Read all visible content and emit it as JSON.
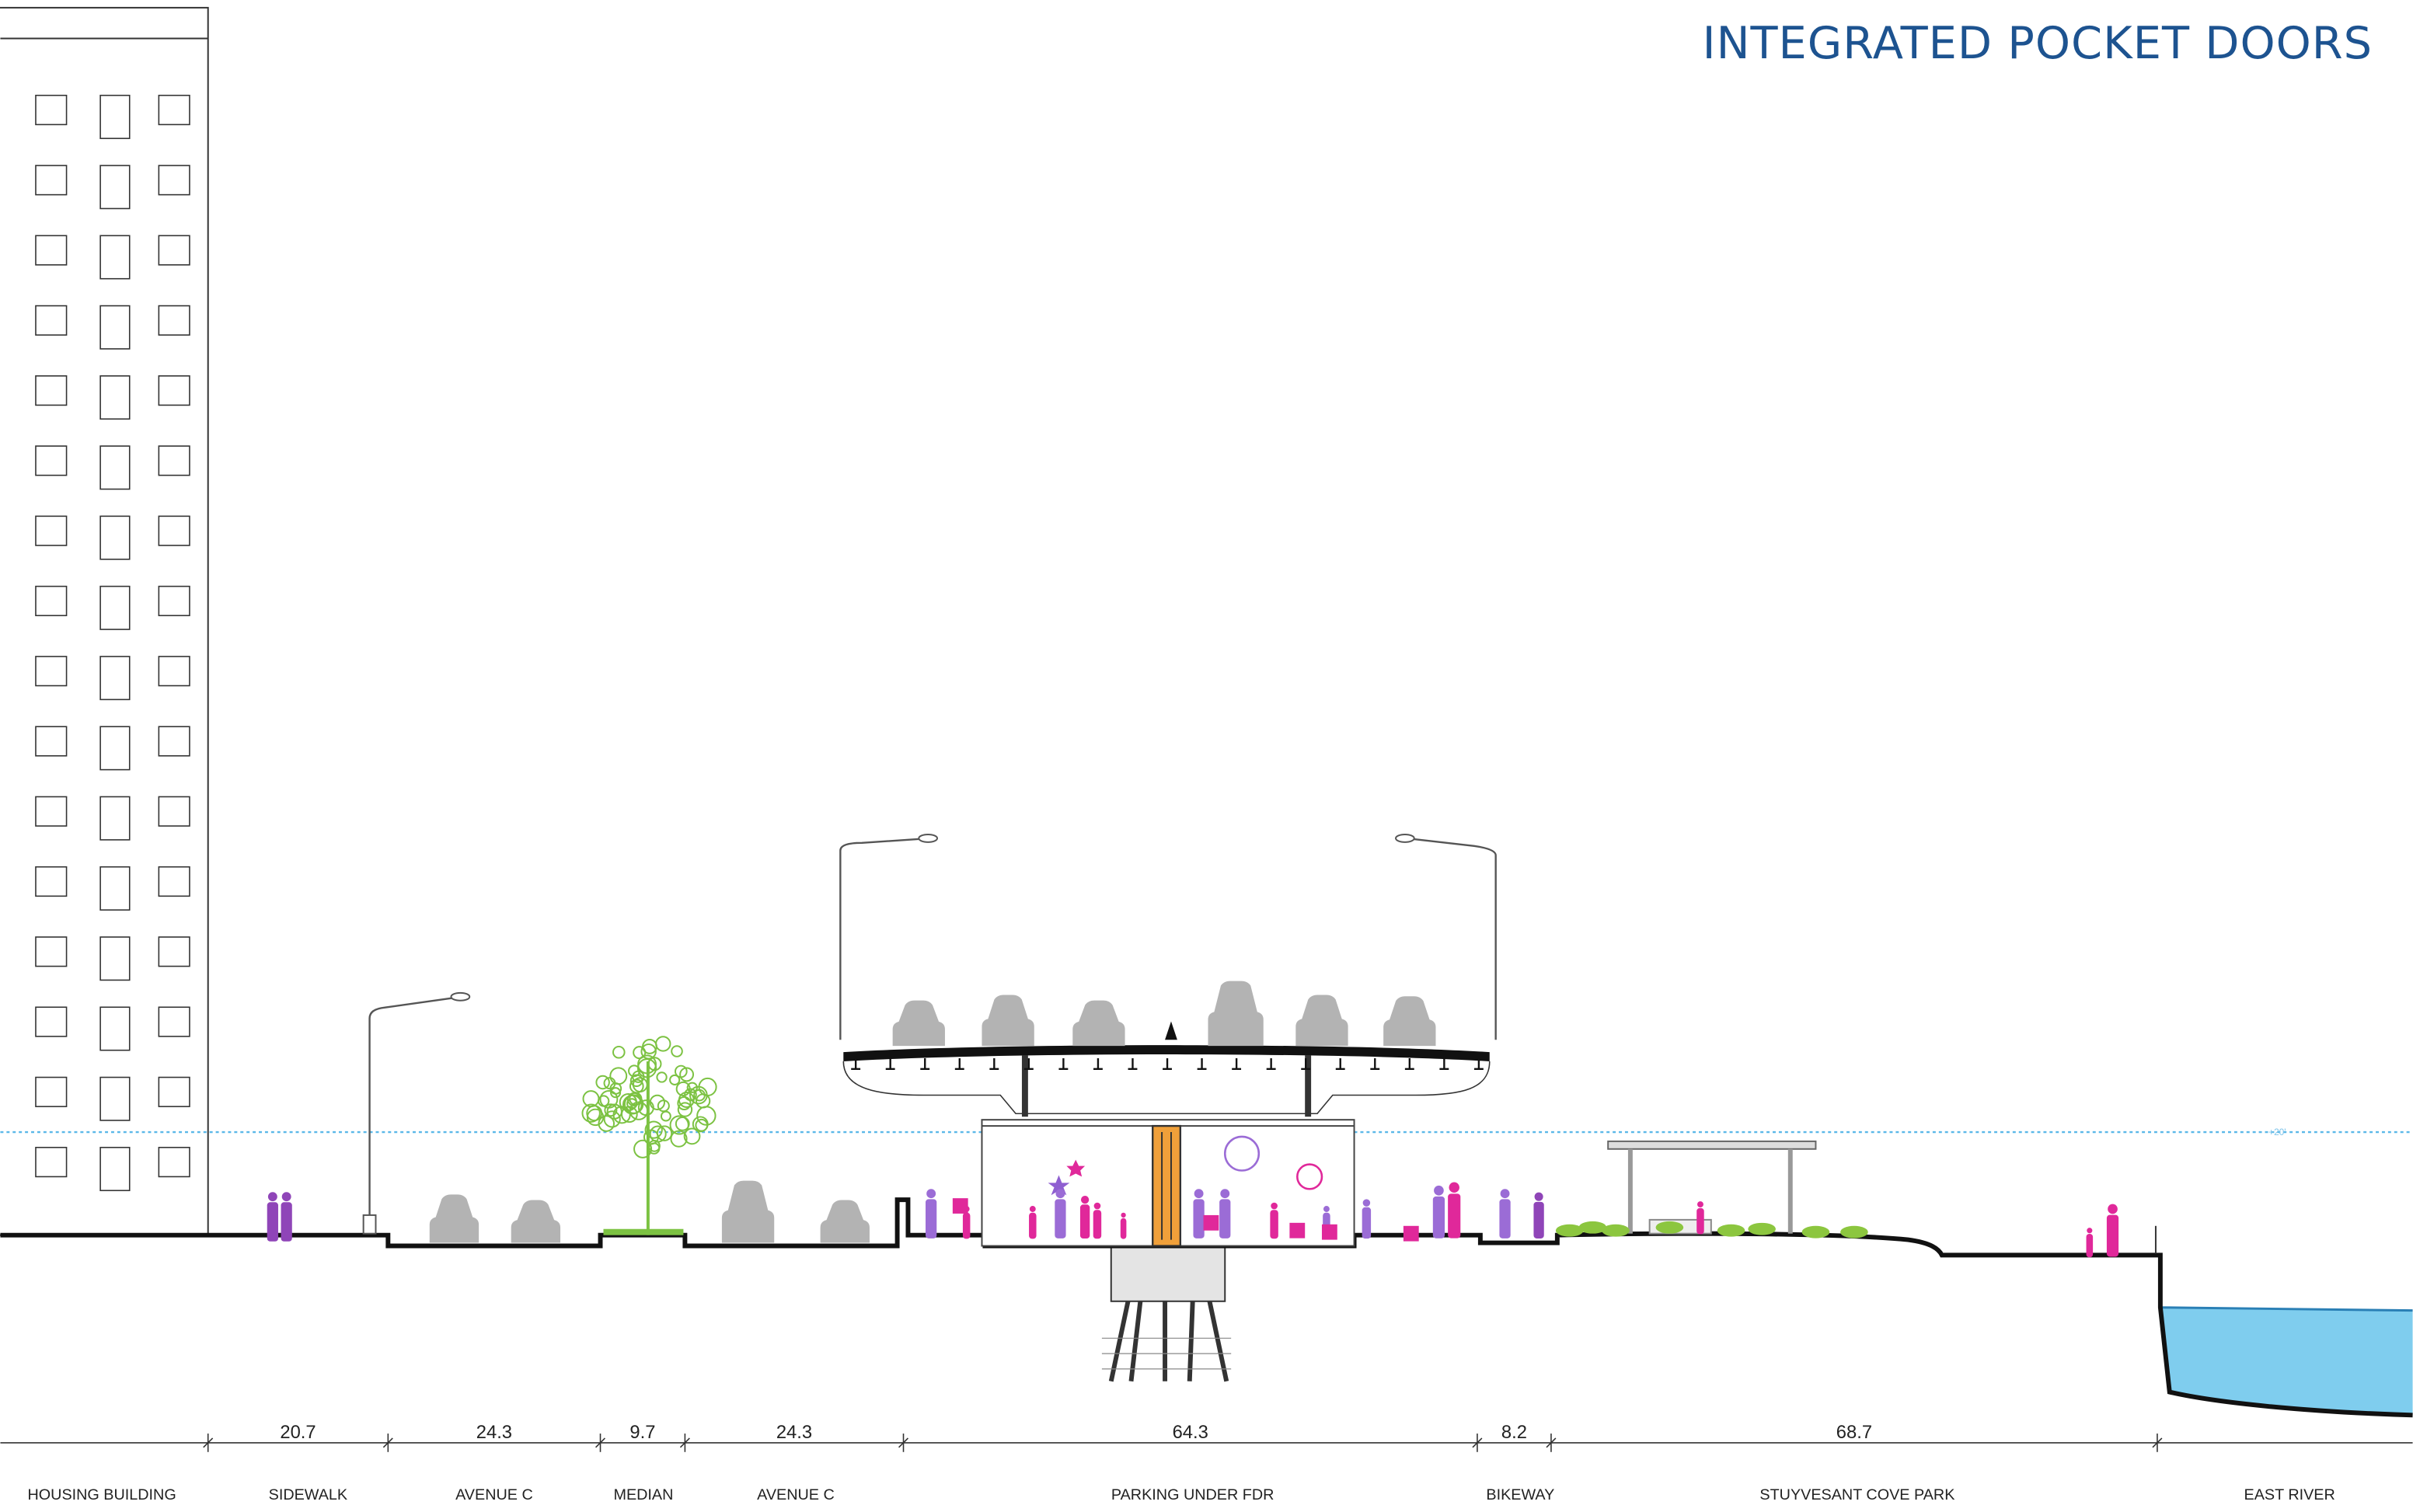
{
  "header": {
    "subtitle": "INTEGRATED POCKET DOORS"
  },
  "flood_label": "+20'",
  "sections": [
    {
      "label": "HOUSING BUILDING"
    },
    {
      "label": "SIDEWALK",
      "dimension": 20.7
    },
    {
      "label": "AVENUE C",
      "dimension": 24.3
    },
    {
      "label": "MEDIAN",
      "dimension": 9.7
    },
    {
      "label": "AVENUE C",
      "dimension": 24.3
    },
    {
      "label": "PARKING UNDER FDR",
      "dimension": 64.3
    },
    {
      "label": "BIKEWAY",
      "dimension": 8.2
    },
    {
      "label": "STUYVESANT COVE PARK",
      "dimension": 68.7
    },
    {
      "label": "EAST RIVER"
    }
  ]
}
